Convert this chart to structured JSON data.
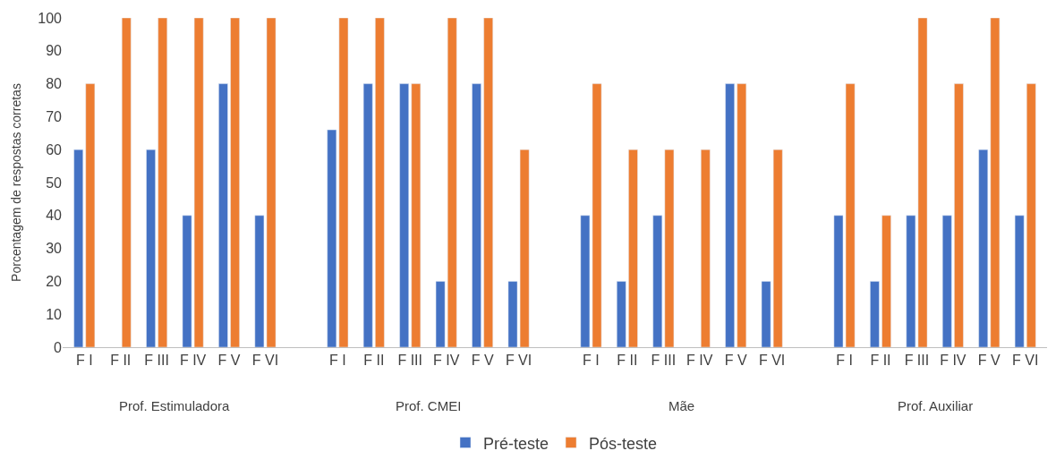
{
  "chart_data": {
    "type": "bar",
    "ylabel": "Porcentagem de respostas corretas",
    "categories": [
      "F I",
      "F II",
      "F III",
      "F IV",
      "F V",
      "F VI",
      null,
      "F I",
      "F II",
      "F III",
      "F IV",
      "F V",
      "F VI",
      null,
      "F I",
      "F II",
      "F III",
      "F IV",
      "F V",
      "F VI",
      null,
      "F I",
      "F II",
      "F III",
      "F IV",
      "F V",
      "F VI"
    ],
    "series": [
      {
        "name": "Pré-teste",
        "color": "#4472c4",
        "values": [
          60,
          null,
          60,
          40,
          80,
          40,
          null,
          66,
          80,
          80,
          20,
          80,
          20,
          null,
          40,
          20,
          40,
          null,
          80,
          20,
          null,
          40,
          20,
          40,
          40,
          60,
          40
        ]
      },
      {
        "name": "Pós-teste",
        "color": "#ed7d31",
        "values": [
          80,
          100,
          100,
          100,
          100,
          100,
          null,
          100,
          100,
          80,
          100,
          100,
          60,
          null,
          80,
          60,
          60,
          60,
          80,
          60,
          null,
          80,
          40,
          100,
          80,
          100,
          80
        ]
      }
    ],
    "annotations": [
      "Prof. Estimuladora",
      "Prof. CMEI",
      "Mãe",
      "Prof. Auxiliar"
    ],
    "ylim": [
      0,
      100
    ],
    "yticks": [
      0,
      10,
      20,
      30,
      40,
      50,
      60,
      70,
      80,
      90,
      100
    ],
    "legend": "bottom"
  }
}
